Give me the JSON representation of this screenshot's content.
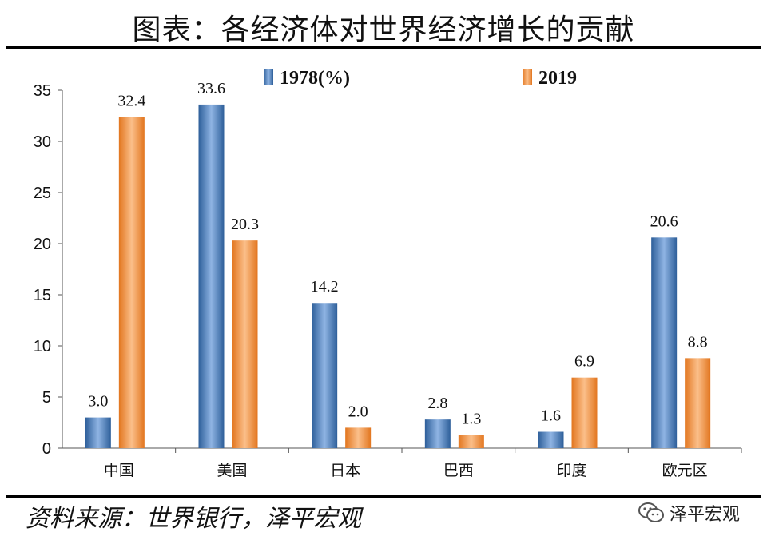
{
  "header": {
    "title": "图表：各经济体对世界经济增长的贡献"
  },
  "footer": {
    "source": "资料来源：世界银行，泽平宏观",
    "watermark": "泽平宏观"
  },
  "colors": {
    "series_1978": "#4f81bd",
    "series_2019": "#f79646"
  },
  "chart_data": {
    "type": "bar",
    "categories": [
      "中国",
      "美国",
      "日本",
      "巴西",
      "印度",
      "欧元区"
    ],
    "series": [
      {
        "name": "1978(%)",
        "values": [
          3.0,
          33.6,
          14.2,
          2.8,
          1.6,
          20.6
        ]
      },
      {
        "name": "2019",
        "values": [
          32.4,
          20.3,
          2.0,
          1.3,
          6.9,
          8.8
        ]
      }
    ],
    "data_labels": [
      [
        "3.0",
        "33.6",
        "14.2",
        "2.8",
        "1.6",
        "20.6"
      ],
      [
        "32.4",
        "20.3",
        "2.0",
        "1.3",
        "6.9",
        "8.8"
      ]
    ],
    "yticks": [
      "0",
      "5",
      "10",
      "15",
      "20",
      "25",
      "30",
      "35"
    ],
    "ylim": [
      0,
      35
    ],
    "legend_position": "top",
    "grid": false
  }
}
